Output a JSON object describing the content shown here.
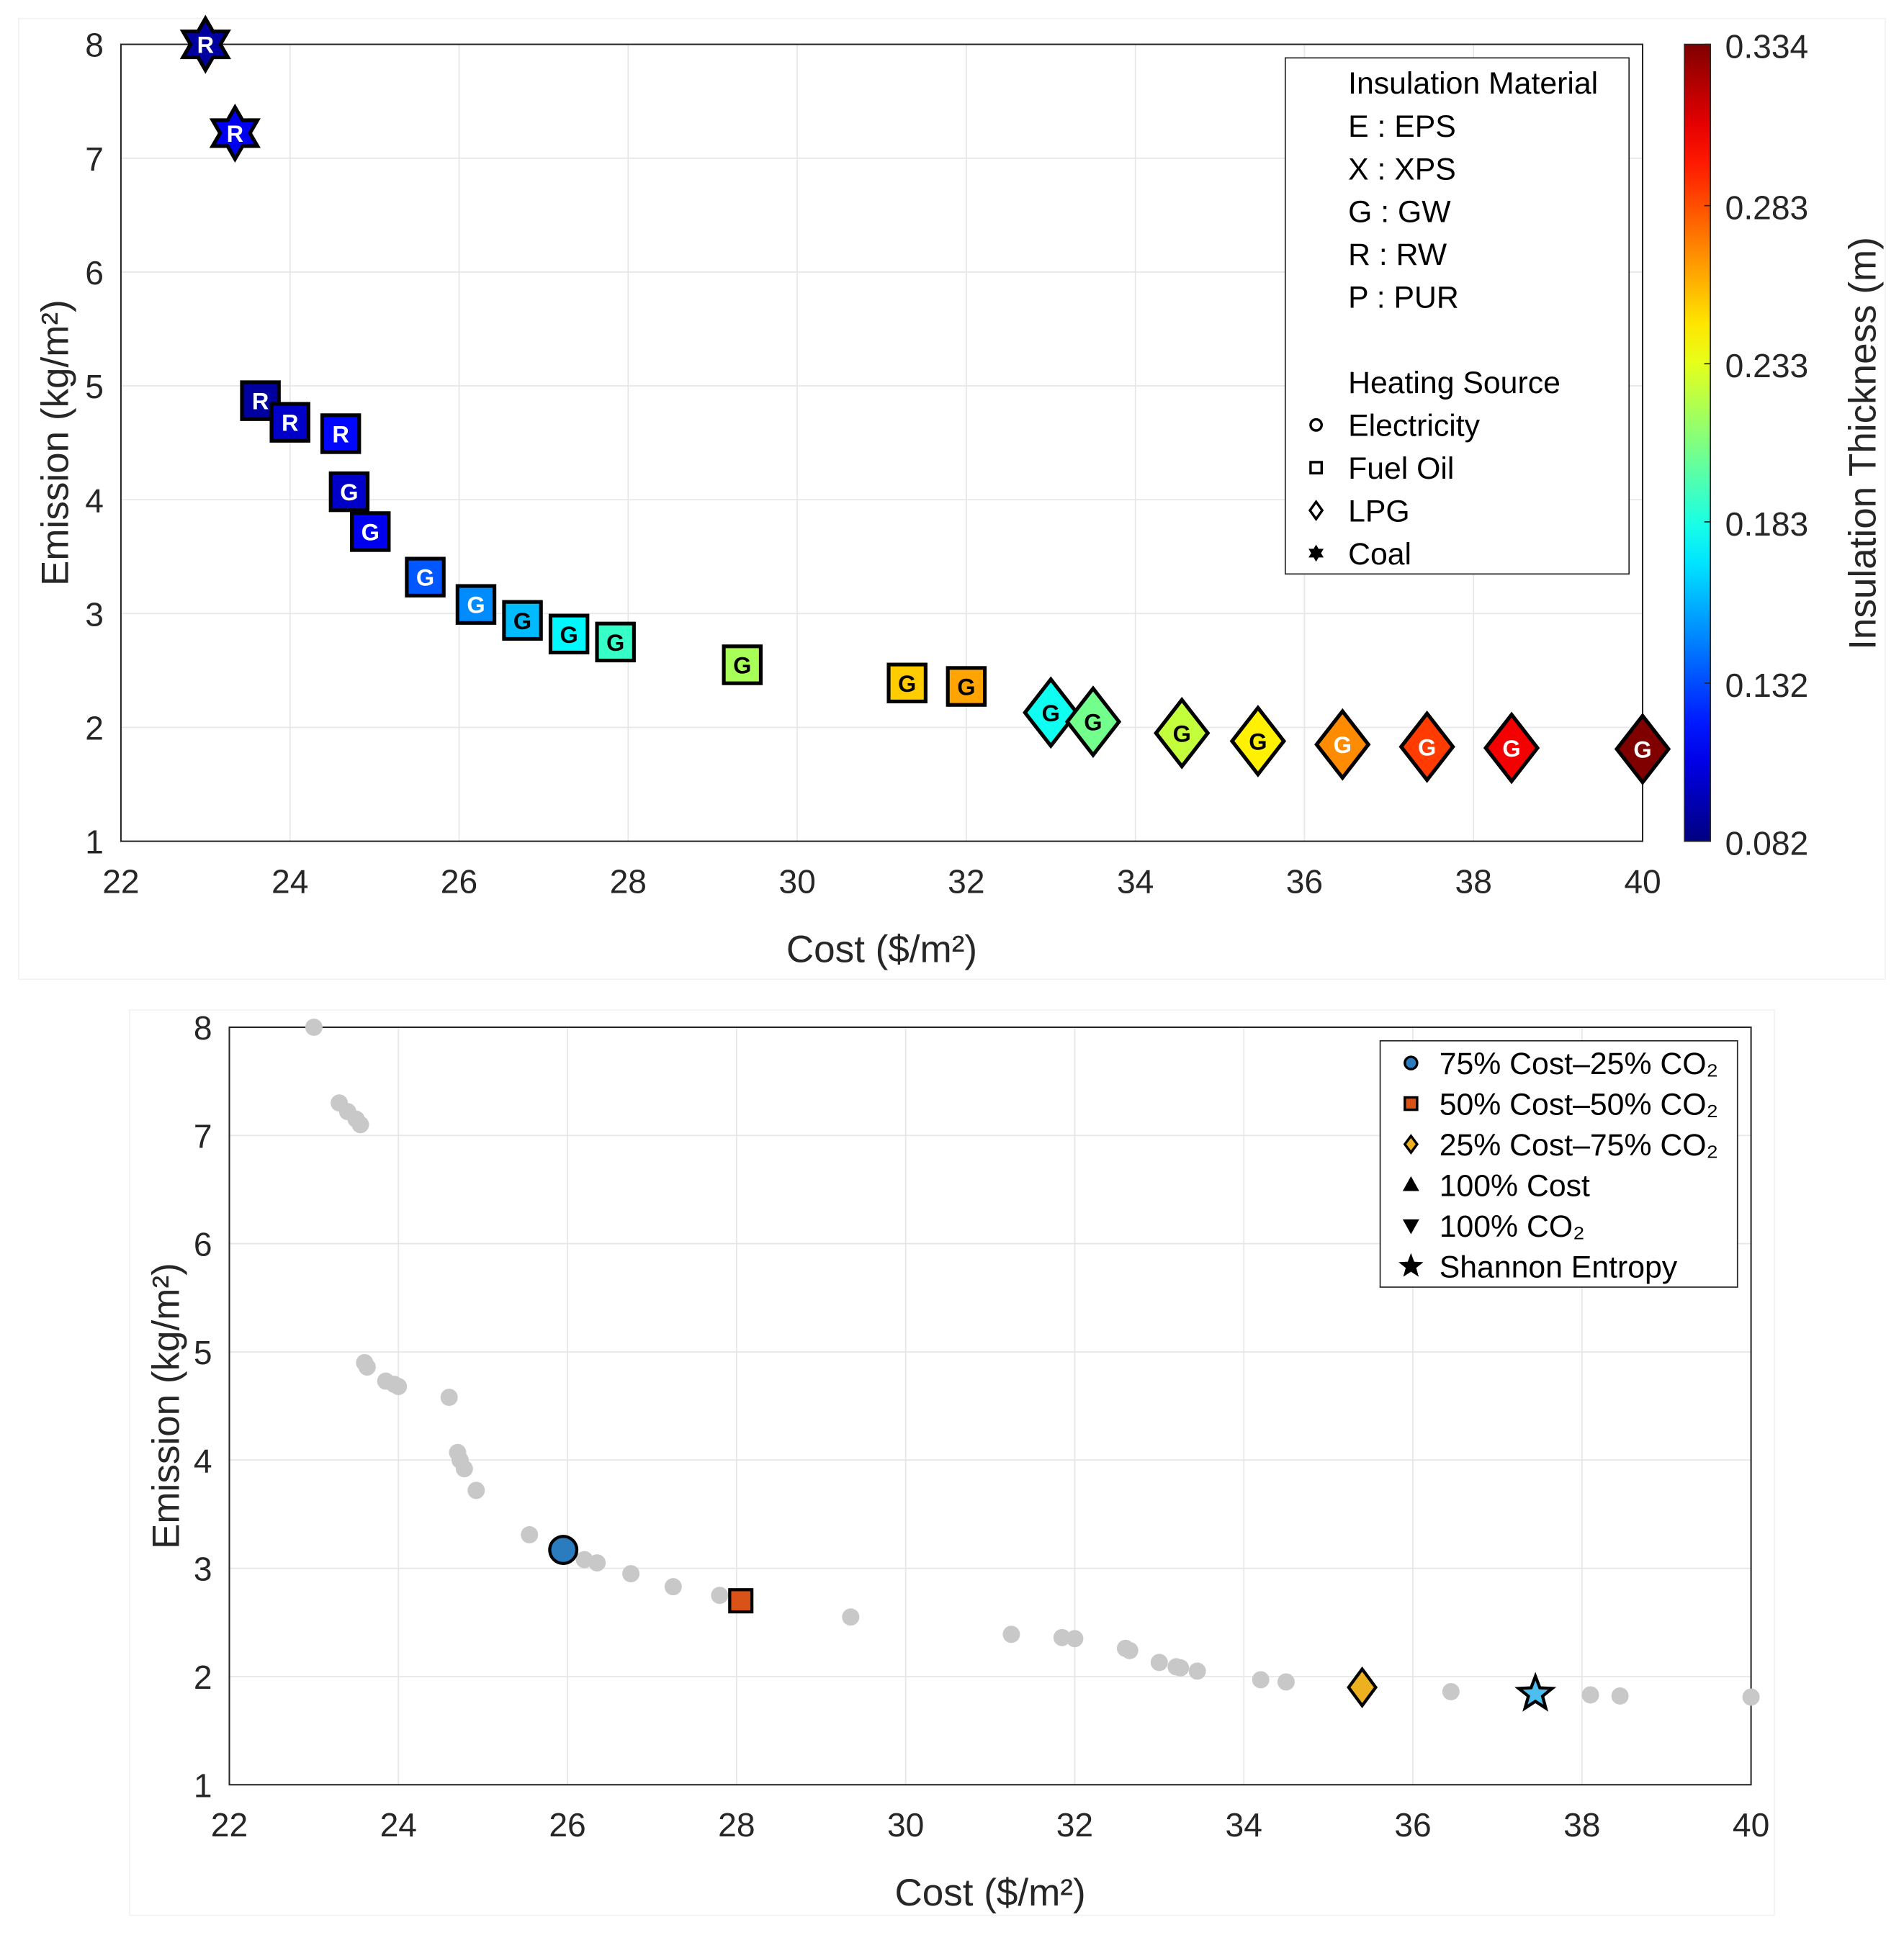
{
  "chart_data": [
    {
      "type": "scatter",
      "xlabel": "Cost ($/m²)",
      "ylabel": "Emission (kg/m²)",
      "xlim": [
        22,
        40
      ],
      "ylim": [
        1,
        8
      ],
      "xticks": [
        "22",
        "24",
        "26",
        "28",
        "30",
        "32",
        "34",
        "36",
        "38",
        "40"
      ],
      "yticks": [
        "1",
        "2",
        "3",
        "4",
        "5",
        "6",
        "7",
        "8"
      ],
      "grid": true,
      "colorbar": {
        "label": "Insulation Thickness (m)",
        "range": [
          0.082,
          0.334
        ],
        "ticks": [
          "0.082",
          "0.132",
          "0.183",
          "0.233",
          "0.283",
          "0.334"
        ],
        "colormap": "jet"
      },
      "legend": {
        "placement": "top-right",
        "material_title": "Insulation Material",
        "materials": [
          "E : EPS",
          "X : XPS",
          "G : GW",
          "R : RW",
          "P : PUR"
        ],
        "source_title": "Heating Source",
        "sources": [
          {
            "label": "Electricity",
            "marker": "circle"
          },
          {
            "label": "Fuel Oil",
            "marker": "square"
          },
          {
            "label": "LPG",
            "marker": "diamond"
          },
          {
            "label": "Coal",
            "marker": "hexagram"
          }
        ]
      },
      "points": [
        {
          "x": 23.0,
          "y": 8.0,
          "material": "R",
          "source": "Coal",
          "thickness": 0.09
        },
        {
          "x": 23.35,
          "y": 7.22,
          "material": "R",
          "source": "Coal",
          "thickness": 0.11
        },
        {
          "x": 23.65,
          "y": 4.87,
          "material": "R",
          "source": "Fuel Oil",
          "thickness": 0.09
        },
        {
          "x": 24.0,
          "y": 4.68,
          "material": "R",
          "source": "Fuel Oil",
          "thickness": 0.1
        },
        {
          "x": 24.6,
          "y": 4.58,
          "material": "R",
          "source": "Fuel Oil",
          "thickness": 0.115
        },
        {
          "x": 24.7,
          "y": 4.07,
          "material": "G",
          "source": "Fuel Oil",
          "thickness": 0.1
        },
        {
          "x": 24.95,
          "y": 3.72,
          "material": "G",
          "source": "Fuel Oil",
          "thickness": 0.11
        },
        {
          "x": 25.6,
          "y": 3.32,
          "material": "G",
          "source": "Fuel Oil",
          "thickness": 0.135
        },
        {
          "x": 26.2,
          "y": 3.08,
          "material": "G",
          "source": "Fuel Oil",
          "thickness": 0.148
        },
        {
          "x": 26.75,
          "y": 2.94,
          "material": "G",
          "source": "Fuel Oil",
          "thickness": 0.16
        },
        {
          "x": 27.3,
          "y": 2.82,
          "material": "G",
          "source": "Fuel Oil",
          "thickness": 0.175
        },
        {
          "x": 27.85,
          "y": 2.75,
          "material": "G",
          "source": "Fuel Oil",
          "thickness": 0.19
        },
        {
          "x": 29.35,
          "y": 2.55,
          "material": "G",
          "source": "Fuel Oil",
          "thickness": 0.218
        },
        {
          "x": 31.3,
          "y": 2.39,
          "material": "G",
          "source": "Fuel Oil",
          "thickness": 0.252
        },
        {
          "x": 32.0,
          "y": 2.36,
          "material": "G",
          "source": "Fuel Oil",
          "thickness": 0.262
        },
        {
          "x": 33.0,
          "y": 2.13,
          "material": "G",
          "source": "LPG",
          "thickness": 0.18
        },
        {
          "x": 33.5,
          "y": 2.05,
          "material": "G",
          "source": "LPG",
          "thickness": 0.205
        },
        {
          "x": 34.55,
          "y": 1.95,
          "material": "G",
          "source": "LPG",
          "thickness": 0.225
        },
        {
          "x": 35.45,
          "y": 1.88,
          "material": "G",
          "source": "LPG",
          "thickness": 0.243
        },
        {
          "x": 36.45,
          "y": 1.85,
          "material": "G",
          "source": "LPG",
          "thickness": 0.268
        },
        {
          "x": 37.45,
          "y": 1.83,
          "material": "G",
          "source": "LPG",
          "thickness": 0.288
        },
        {
          "x": 38.45,
          "y": 1.82,
          "material": "G",
          "source": "LPG",
          "thickness": 0.305
        },
        {
          "x": 40.0,
          "y": 1.81,
          "material": "G",
          "source": "LPG",
          "thickness": 0.334
        }
      ]
    },
    {
      "type": "scatter",
      "xlabel": "Cost ($/m²)",
      "ylabel": "Emission (kg/m²)",
      "xlim": [
        22,
        40
      ],
      "ylim": [
        1,
        8
      ],
      "xticks": [
        "22",
        "24",
        "26",
        "28",
        "30",
        "32",
        "34",
        "36",
        "38",
        "40"
      ],
      "yticks": [
        "1",
        "2",
        "3",
        "4",
        "5",
        "6",
        "7",
        "8"
      ],
      "grid": true,
      "legend": {
        "placement": "top-right",
        "entries": [
          {
            "label": "75% Cost–25% CO₂",
            "marker": "circle",
            "color": "#2b7bbf"
          },
          {
            "label": "50% Cost–50% CO₂",
            "marker": "square",
            "color": "#d95319"
          },
          {
            "label": "25% Cost–75% CO₂",
            "marker": "diamond",
            "color": "#edb120"
          },
          {
            "label": "100% Cost",
            "marker": "triangle-up",
            "color": "#7e2f8e"
          },
          {
            "label": "100% CO₂",
            "marker": "triangle-down",
            "color": "#77ac30"
          },
          {
            "label": "Shannon Entropy",
            "marker": "star",
            "color": "#4dbeee"
          }
        ]
      },
      "background_points": [
        [
          23.0,
          8.0
        ],
        [
          23.3,
          7.3
        ],
        [
          23.4,
          7.22
        ],
        [
          23.5,
          7.15
        ],
        [
          23.55,
          7.1
        ],
        [
          23.6,
          4.9
        ],
        [
          23.63,
          4.86
        ],
        [
          23.85,
          4.73
        ],
        [
          23.95,
          4.7
        ],
        [
          24.0,
          4.68
        ],
        [
          24.6,
          4.58
        ],
        [
          24.7,
          4.07
        ],
        [
          24.73,
          4.0
        ],
        [
          24.78,
          3.92
        ],
        [
          24.92,
          3.72
        ],
        [
          25.55,
          3.31
        ],
        [
          26.2,
          3.08
        ],
        [
          26.35,
          3.05
        ],
        [
          26.75,
          2.95
        ],
        [
          27.25,
          2.83
        ],
        [
          27.8,
          2.75
        ],
        [
          29.35,
          2.55
        ],
        [
          31.25,
          2.39
        ],
        [
          31.85,
          2.36
        ],
        [
          32.0,
          2.35
        ],
        [
          32.6,
          2.26
        ],
        [
          32.65,
          2.24
        ],
        [
          33.0,
          2.13
        ],
        [
          33.2,
          2.09
        ],
        [
          33.25,
          2.08
        ],
        [
          33.45,
          2.05
        ],
        [
          34.2,
          1.97
        ],
        [
          34.5,
          1.95
        ],
        [
          36.45,
          1.86
        ],
        [
          38.1,
          1.83
        ],
        [
          38.45,
          1.82
        ],
        [
          40.0,
          1.81
        ]
      ],
      "highlighted": [
        {
          "label": "75% Cost–25% CO₂",
          "x": 25.95,
          "y": 3.17,
          "marker": "circle",
          "color": "#2b7bbf"
        },
        {
          "label": "50% Cost–50% CO₂",
          "x": 28.05,
          "y": 2.7,
          "marker": "square",
          "color": "#d95319"
        },
        {
          "label": "25% Cost–75% CO₂",
          "x": 35.4,
          "y": 1.9,
          "marker": "diamond",
          "color": "#edb120"
        },
        {
          "label": "Shannon Entropy",
          "x": 37.45,
          "y": 1.84,
          "marker": "star",
          "color": "#4dbeee"
        }
      ]
    }
  ]
}
